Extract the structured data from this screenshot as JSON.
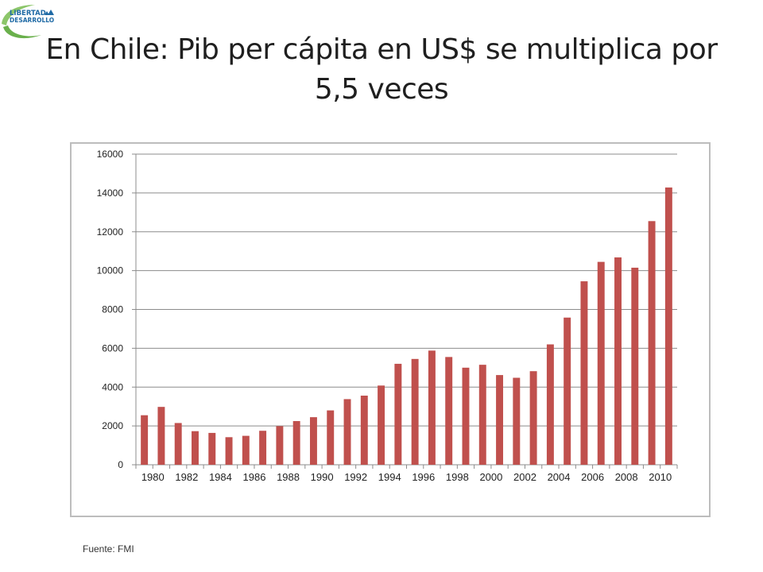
{
  "header": {
    "logo_line1": "LIBERTAD",
    "logo_line2": "DESARROLLO",
    "title_line1": "En Chile: Pib per cápita en US$ se multiplica por",
    "title_line2": "5,5 veces"
  },
  "footer": {
    "source": "Fuente: FMI"
  },
  "colors": {
    "bar": "#c0504d",
    "grid": "#8c8c8c",
    "axis": "#8c8c8c",
    "logo_green": "#6ab04c",
    "logo_blue": "#1f6aa5"
  },
  "chart_data": {
    "type": "bar",
    "title": "",
    "xlabel": "",
    "ylabel": "",
    "ylim": [
      0,
      16000
    ],
    "yticks": [
      "0",
      "2000",
      "4000",
      "6000",
      "8000",
      "10000",
      "12000",
      "14000",
      "16000"
    ],
    "categories": [
      "1980",
      "1981",
      "1982",
      "1983",
      "1984",
      "1985",
      "1986",
      "1987",
      "1988",
      "1989",
      "1990",
      "1991",
      "1992",
      "1993",
      "1994",
      "1995",
      "1996",
      "1997",
      "1998",
      "1999",
      "2000",
      "2001",
      "2002",
      "2003",
      "2004",
      "2005",
      "2006",
      "2007",
      "2008",
      "2009",
      "2010",
      "2011"
    ],
    "xtick_labels": [
      "1980",
      "1982",
      "1984",
      "1986",
      "1988",
      "1990",
      "1992",
      "1994",
      "1996",
      "1998",
      "2000",
      "2002",
      "2004",
      "2006",
      "2008",
      "2010"
    ],
    "series": [
      {
        "name": "Pib per cápita (US$)",
        "values": [
          2550,
          2980,
          2150,
          1730,
          1640,
          1420,
          1490,
          1750,
          1990,
          2250,
          2450,
          2800,
          3380,
          3560,
          4080,
          5200,
          5450,
          5880,
          5550,
          5000,
          5150,
          4620,
          4480,
          4820,
          6200,
          7580,
          9450,
          10450,
          10680,
          10150,
          12550,
          14280
        ]
      }
    ],
    "grid": true,
    "legend": "none"
  }
}
